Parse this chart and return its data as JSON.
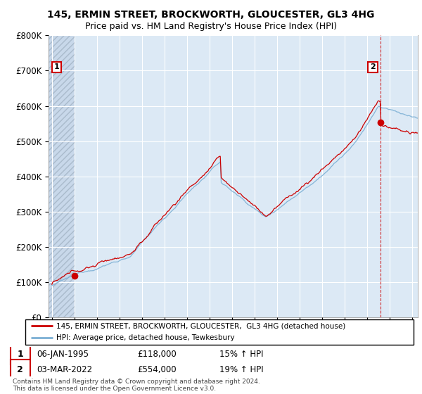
{
  "title1": "145, ERMIN STREET, BROCKWORTH, GLOUCESTER, GL3 4HG",
  "title2": "Price paid vs. HM Land Registry's House Price Index (HPI)",
  "ylim": [
    0,
    800000
  ],
  "yticks": [
    0,
    100000,
    200000,
    300000,
    400000,
    500000,
    600000,
    700000,
    800000
  ],
  "ytick_labels": [
    "£0",
    "£100K",
    "£200K",
    "£300K",
    "£400K",
    "£500K",
    "£600K",
    "£700K",
    "£800K"
  ],
  "xlim_start": 1992.7,
  "xlim_end": 2025.5,
  "background_color": "#ffffff",
  "plot_bg_color": "#dce9f5",
  "grid_color": "#ffffff",
  "hatch_bg_color": "#c8d8ea",
  "sale1_x": 1995.03,
  "sale1_y": 118000,
  "sale1_label": "1",
  "sale2_x": 2022.17,
  "sale2_y": 554000,
  "sale2_label": "2",
  "sale_color": "#cc0000",
  "hpi_color": "#7bafd4",
  "legend_line1": "145, ERMIN STREET, BROCKWORTH, GLOUCESTER,  GL3 4HG (detached house)",
  "legend_line2": "HPI: Average price, detached house, Tewkesbury",
  "ann1_date": "06-JAN-1995",
  "ann1_price": "£118,000",
  "ann1_hpi": "15% ↑ HPI",
  "ann2_date": "03-MAR-2022",
  "ann2_price": "£554,000",
  "ann2_hpi": "19% ↑ HPI",
  "footer": "Contains HM Land Registry data © Crown copyright and database right 2024.\nThis data is licensed under the Open Government Licence v3.0.",
  "title_fontsize": 10,
  "subtitle_fontsize": 9
}
